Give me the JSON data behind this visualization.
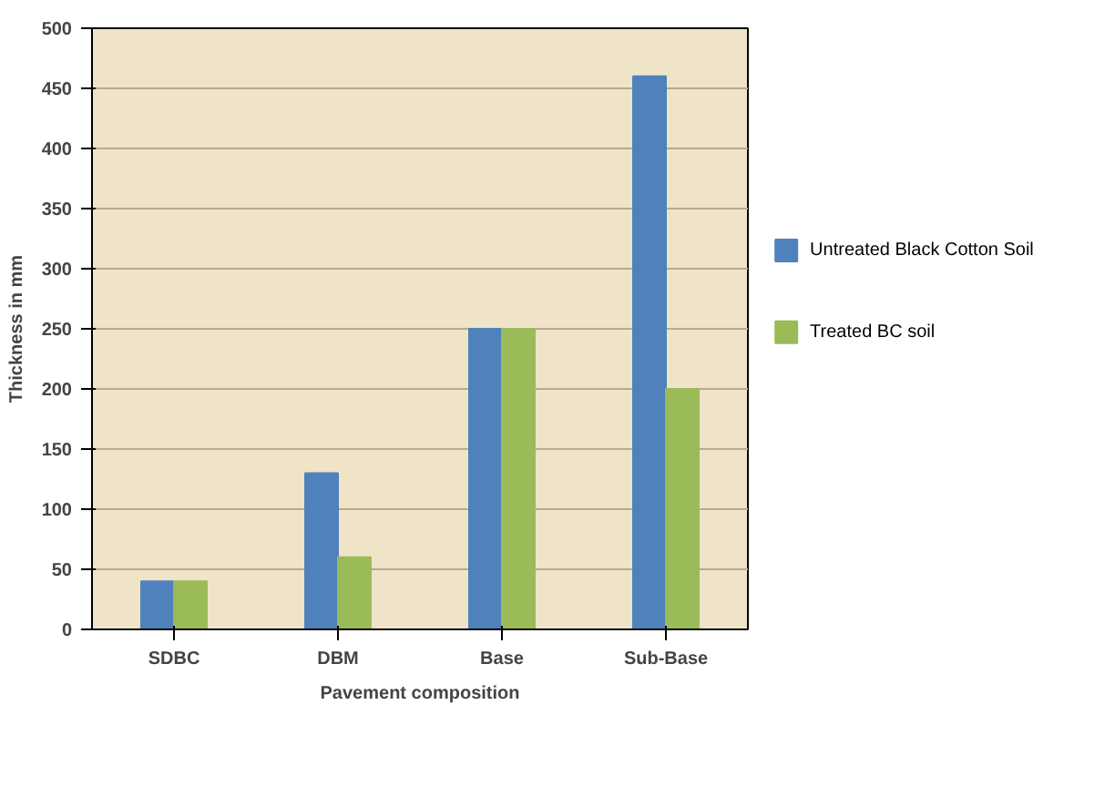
{
  "chart_data": {
    "type": "bar",
    "xlabel": "Pavement composition",
    "ylabel": "Thickness in mm",
    "categories": [
      "SDBC",
      "DBM",
      "Base",
      "Sub-Base"
    ],
    "series": [
      {
        "name": "Untreated Black Cotton Soil",
        "color": "#4f81bd",
        "values": [
          40,
          130,
          250,
          460
        ]
      },
      {
        "name": "Treated BC soil",
        "color": "#9bbb59",
        "values": [
          40,
          60,
          250,
          200
        ]
      }
    ],
    "ylim": [
      0,
      500
    ],
    "yticks": [
      0,
      50,
      100,
      150,
      200,
      250,
      300,
      350,
      400,
      450,
      500
    ],
    "grid": "y",
    "legend": "right"
  }
}
